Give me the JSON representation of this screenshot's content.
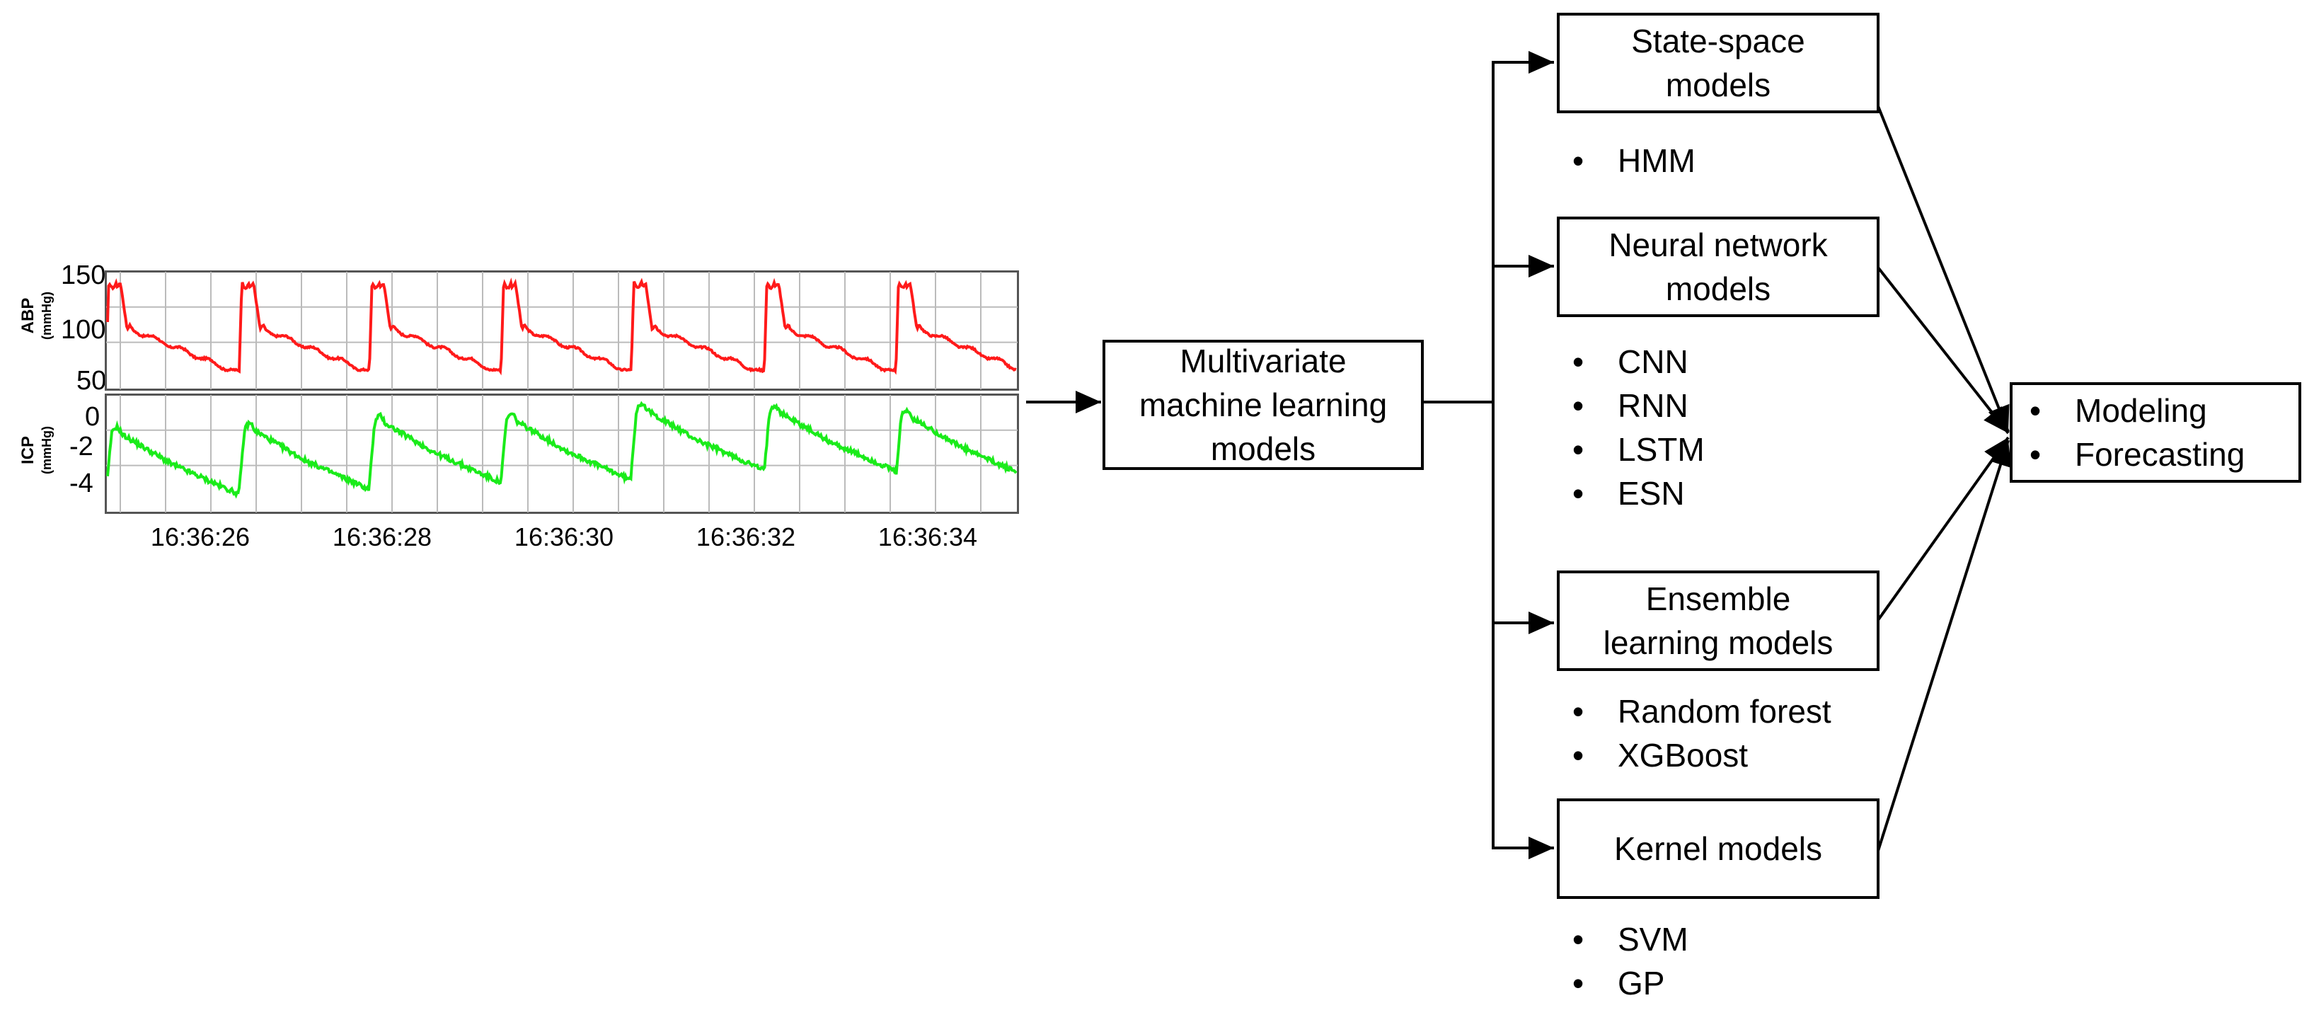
{
  "signals": {
    "abp": {
      "axis_title": "ABP",
      "axis_unit": "(mmHg)",
      "ticks": [
        "150",
        "100",
        "50"
      ],
      "color": "#ff1a1a"
    },
    "icp": {
      "axis_title": "ICP",
      "axis_unit": "(mmHg)",
      "ticks": [
        "0",
        "-2",
        "-4"
      ],
      "color": "#1aeb1a"
    },
    "time_ticks": [
      "16:36:26",
      "16:36:28",
      "16:36:30",
      "16:36:32",
      "16:36:34"
    ]
  },
  "center_box": {
    "lines": [
      "Multivariate",
      "machine learning",
      "models"
    ]
  },
  "model_groups": [
    {
      "lines": [
        "State-space",
        "models"
      ],
      "items": [
        "HMM"
      ]
    },
    {
      "lines": [
        "Neural network",
        "models"
      ],
      "items": [
        "CNN",
        "RNN",
        "LSTM",
        "ESN"
      ]
    },
    {
      "lines": [
        "Ensemble",
        "learning models"
      ],
      "items": [
        "Random forest",
        "XGBoost"
      ]
    },
    {
      "lines": [
        "Kernel models"
      ],
      "items": [
        "SVM",
        "GP"
      ]
    }
  ],
  "output_box": {
    "items": [
      "Modeling",
      "Forecasting"
    ]
  }
}
